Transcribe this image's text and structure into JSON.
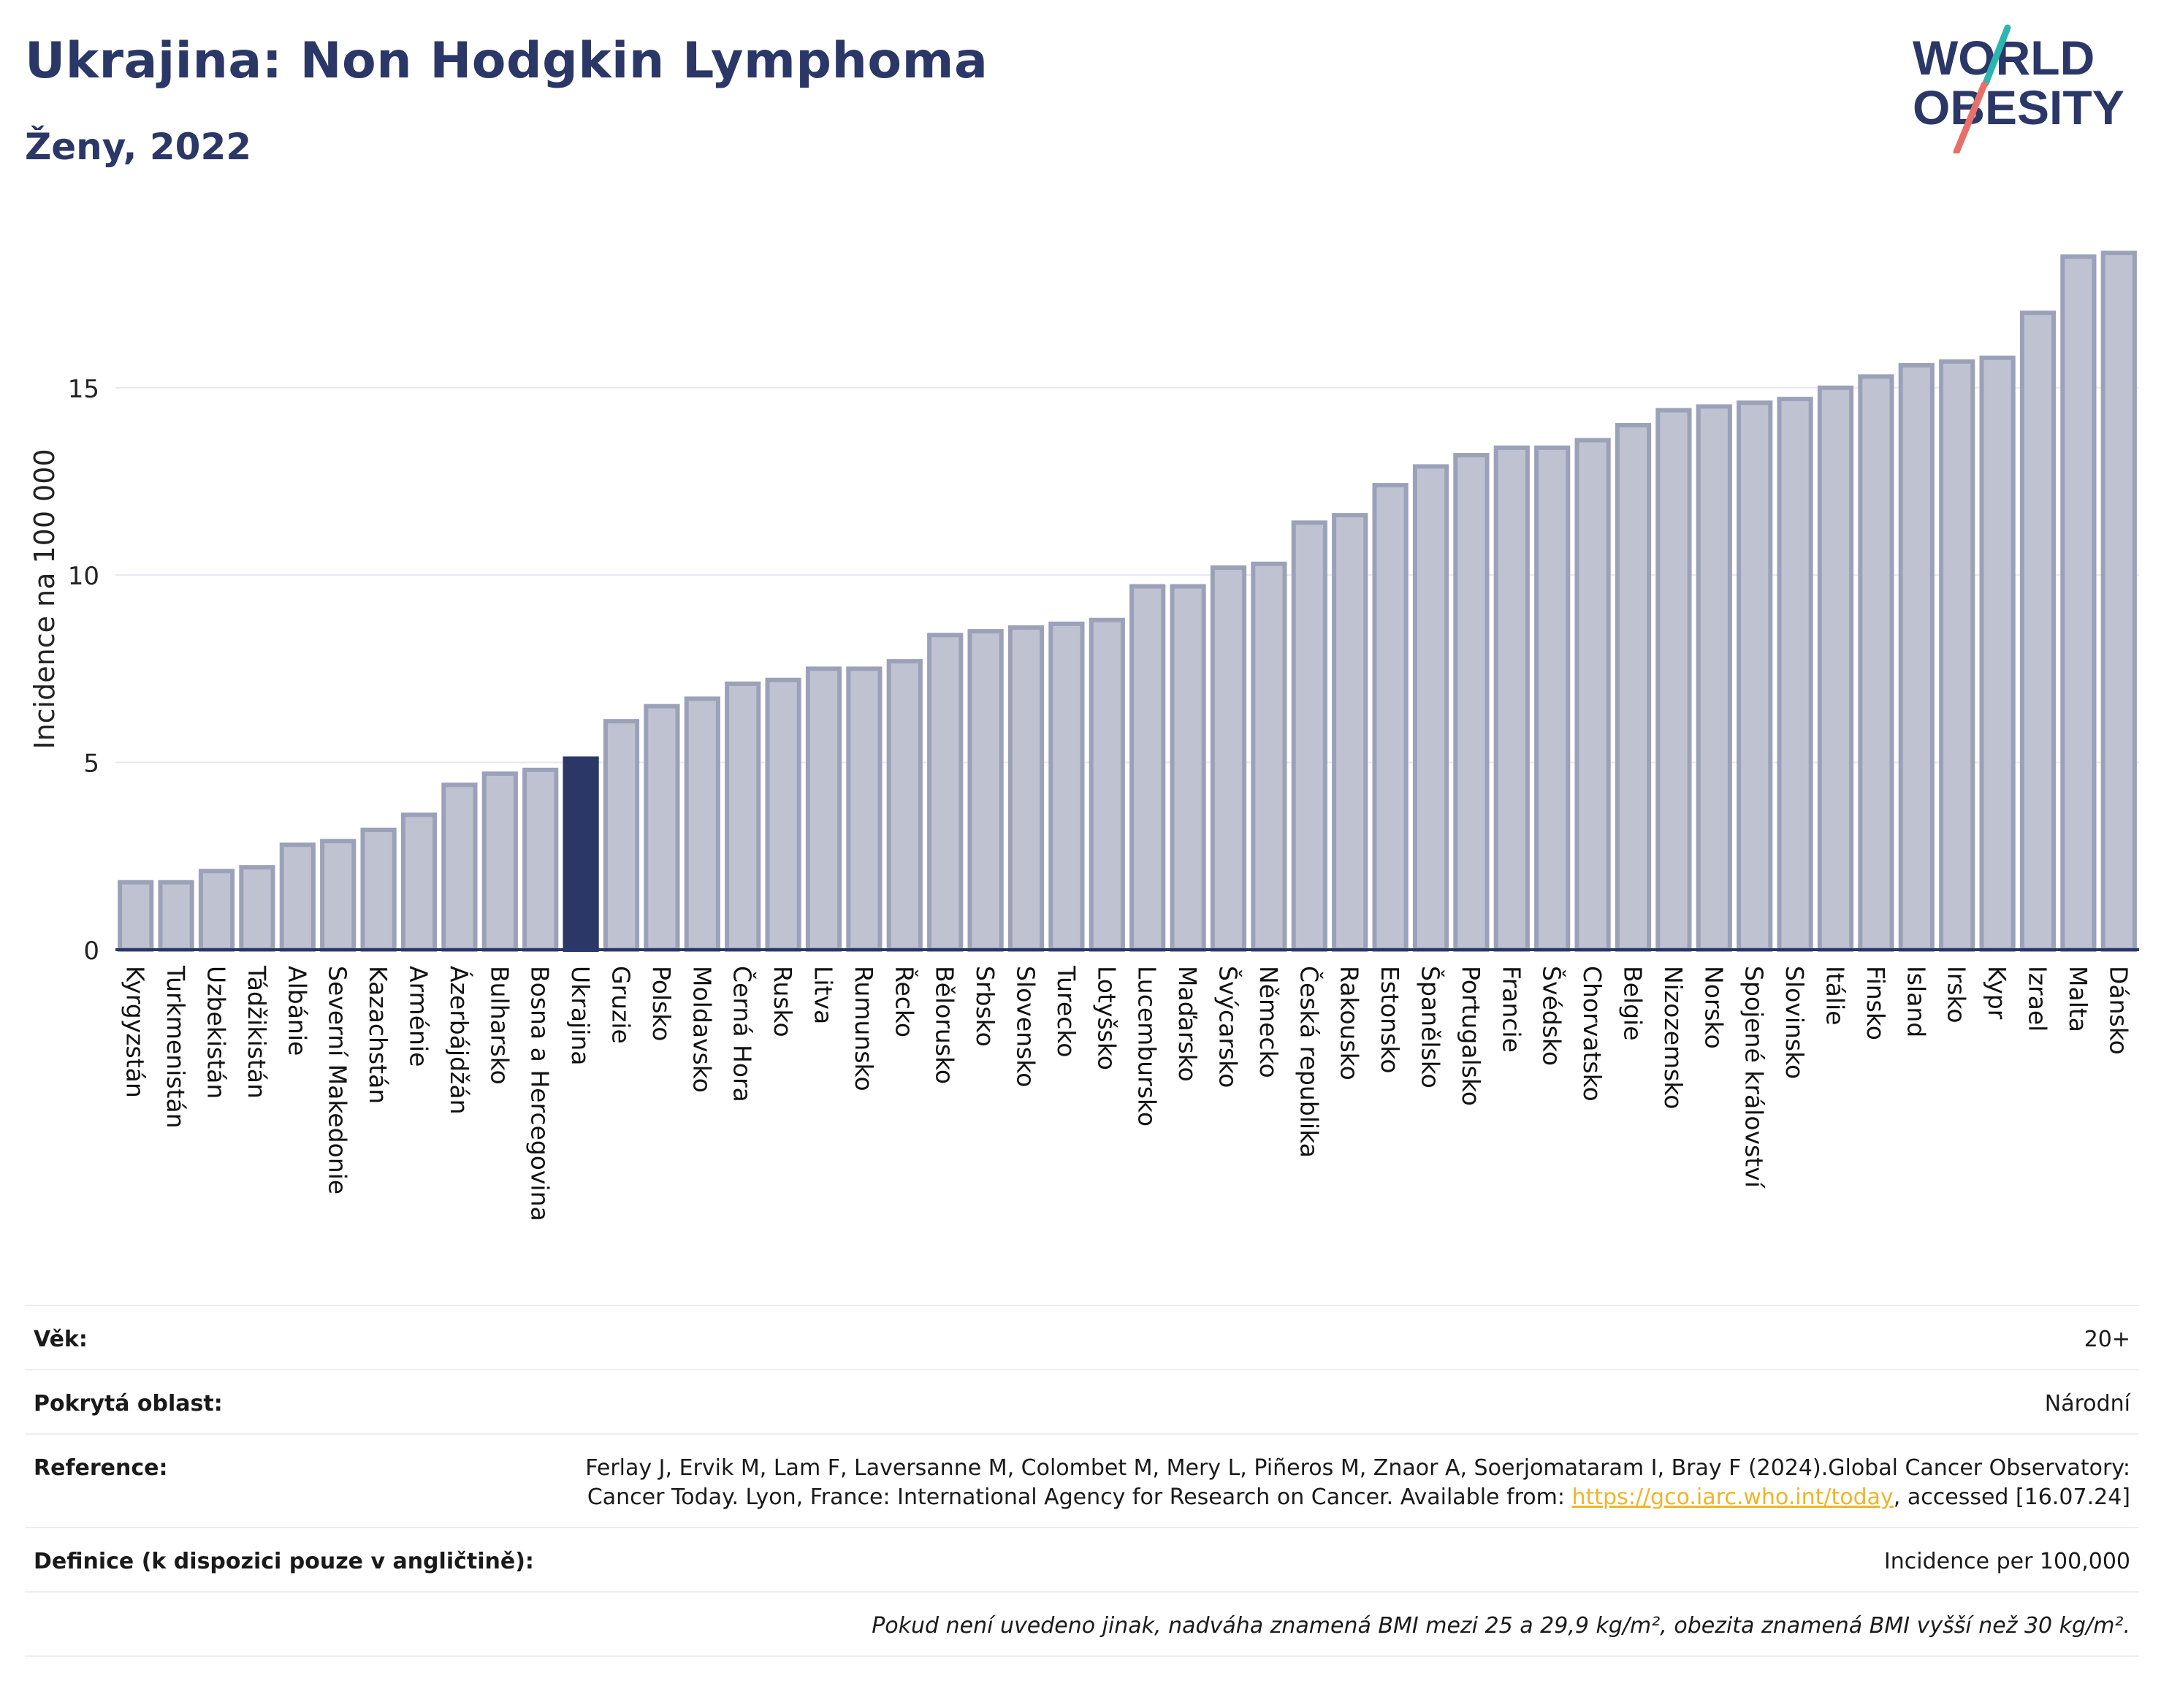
{
  "header": {
    "title": "Ukrajina: Non Hodgkin Lymphoma",
    "subtitle": "Ženy, 2022"
  },
  "logo": {
    "line1": "WORLD",
    "line2": "OBESITY",
    "colors": {
      "text": "#2b3766",
      "slash_teal": "#2bb5b0",
      "slash_coral": "#e8706a"
    }
  },
  "chart_data": {
    "type": "bar",
    "ylabel": "Incidence na 100 000",
    "xlabel": "",
    "ylim": [
      0,
      19.5
    ],
    "yticks": [
      0,
      5,
      10,
      15
    ],
    "grid": true,
    "highlight": "Ukrajina",
    "colors": {
      "bar": "#bfc3d1",
      "bar_edge": "#9ba1b9",
      "highlight": "#2b3766"
    },
    "categories": [
      "Kyrgyzstán",
      "Turkmenistán",
      "Uzbekistán",
      "Tádžikistán",
      "Albánie",
      "Severní Makedonie",
      "Kazachstán",
      "Arménie",
      "Ázerbájdžán",
      "Bulharsko",
      "Bosna a Hercegovina",
      "Ukrajina",
      "Gruzie",
      "Polsko",
      "Moldavsko",
      "Černá Hora",
      "Rusko",
      "Litva",
      "Rumunsko",
      "Řecko",
      "Bělorusko",
      "Srbsko",
      "Slovensko",
      "Turecko",
      "Lotyšsko",
      "Lucembursko",
      "Maďarsko",
      "Švýcarsko",
      "Německo",
      "Česká republika",
      "Rakousko",
      "Estonsko",
      "Španělsko",
      "Portugalsko",
      "Francie",
      "Švédsko",
      "Chorvatsko",
      "Belgie",
      "Nizozemsko",
      "Norsko",
      "Spojené království",
      "Slovinsko",
      "Itálie",
      "Finsko",
      "Island",
      "Irsko",
      "Kypr",
      "Izrael",
      "Malta",
      "Dánsko"
    ],
    "values": [
      1.8,
      1.8,
      2.1,
      2.2,
      2.8,
      2.9,
      3.2,
      3.6,
      4.4,
      4.7,
      4.8,
      5.1,
      6.1,
      6.5,
      6.7,
      7.1,
      7.2,
      7.5,
      7.5,
      7.7,
      8.4,
      8.5,
      8.6,
      8.7,
      8.8,
      9.7,
      9.7,
      10.2,
      10.3,
      11.4,
      11.6,
      12.4,
      12.9,
      13.2,
      13.4,
      13.4,
      13.6,
      14.0,
      14.4,
      14.5,
      14.6,
      14.7,
      15.0,
      15.3,
      15.6,
      15.7,
      15.8,
      17.0,
      18.5,
      18.6
    ]
  },
  "info": {
    "rows": [
      {
        "label": "Věk:",
        "value": "20+"
      },
      {
        "label": "Pokrytá oblast:",
        "value": "Národní"
      },
      {
        "label": "Reference:",
        "value_pre": "Ferlay J, Ervik M, Lam F, Laversanne M, Colombet M, Mery L, Piñeros M, Znaor A, Soerjomataram I, Bray F (2024).Global Cancer Observatory: Cancer Today. Lyon, France: International Agency for Research on Cancer. Available from: ",
        "link": "https://gco.iarc.who.int/today",
        "value_post": ", accessed [16.07.24]"
      },
      {
        "label": "Definice (k dispozici pouze v angličtině):",
        "value": "Incidence per 100,000"
      }
    ],
    "note": "Pokud není uvedeno jinak, nadváha znamená BMI mezi 25 a 29,9 kg/m², obezita znamená BMI vyšší než 30 kg/m²."
  }
}
